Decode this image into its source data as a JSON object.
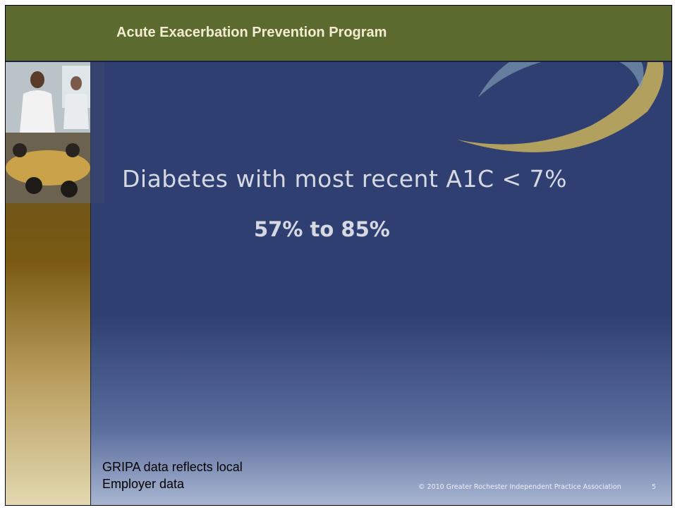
{
  "header": {
    "title": "Acute Exacerbation Prevention Program"
  },
  "body": {
    "statement": "Diabetes with most recent A1C < 7%",
    "result": "57% to 85%"
  },
  "footer": {
    "note": [
      "GRIPA data reflects local",
      "Employer data"
    ],
    "copyright": "© 2010 Greater Rochester Independent Practice Association",
    "page": "5"
  }
}
